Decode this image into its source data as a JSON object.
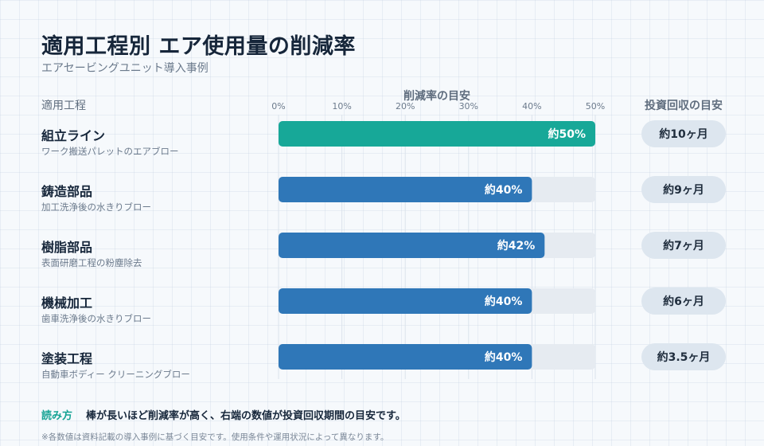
{
  "header": {
    "title": "適用工程別 エア使用量の削減率",
    "subtitle": "エアセービングユニット導入事例"
  },
  "columns": {
    "process": "適用工程",
    "reduction": "削減率の目安",
    "payback": "投資回収の目安"
  },
  "colors": {
    "highlight": "#17a898",
    "bar": "#2f77b8",
    "track": "#e6ebf1",
    "pill": "#dde6ef"
  },
  "chart_data": {
    "type": "bar",
    "orientation": "horizontal",
    "xlabel": "削減率の目安",
    "xlim": [
      0,
      50
    ],
    "ticks": [
      "0%",
      "10%",
      "20%",
      "30%",
      "40%",
      "50%"
    ],
    "grid": true,
    "categories": [
      "組立ライン",
      "鋳造部品",
      "樹脂部品",
      "機械加工",
      "塗装工程"
    ],
    "descriptions": [
      "ワーク搬送パレットのエアブロー",
      "加工洗浄後の水きりブロー",
      "表面研磨工程の粉塵除去",
      "歯車洗浄後の水きりブロー",
      "自動車ボディー クリーニングブロー"
    ],
    "values": [
      50,
      40,
      42,
      40,
      40
    ],
    "value_labels": [
      "約50%",
      "約40%",
      "約42%",
      "約40%",
      "約40%"
    ],
    "payback": [
      "約10ヶ月",
      "約9ヶ月",
      "約7ヶ月",
      "約6ヶ月",
      "約3.5ヶ月"
    ],
    "highlight_index": 0
  },
  "footer": {
    "read_label": "読み方",
    "read_text": "棒が長いほど削減率が高く、右端の数値が投資回収期間の目安です。",
    "note": "※各数値は資料記載の導入事例に基づく目安です。使用条件や運用状況によって異なります。"
  }
}
